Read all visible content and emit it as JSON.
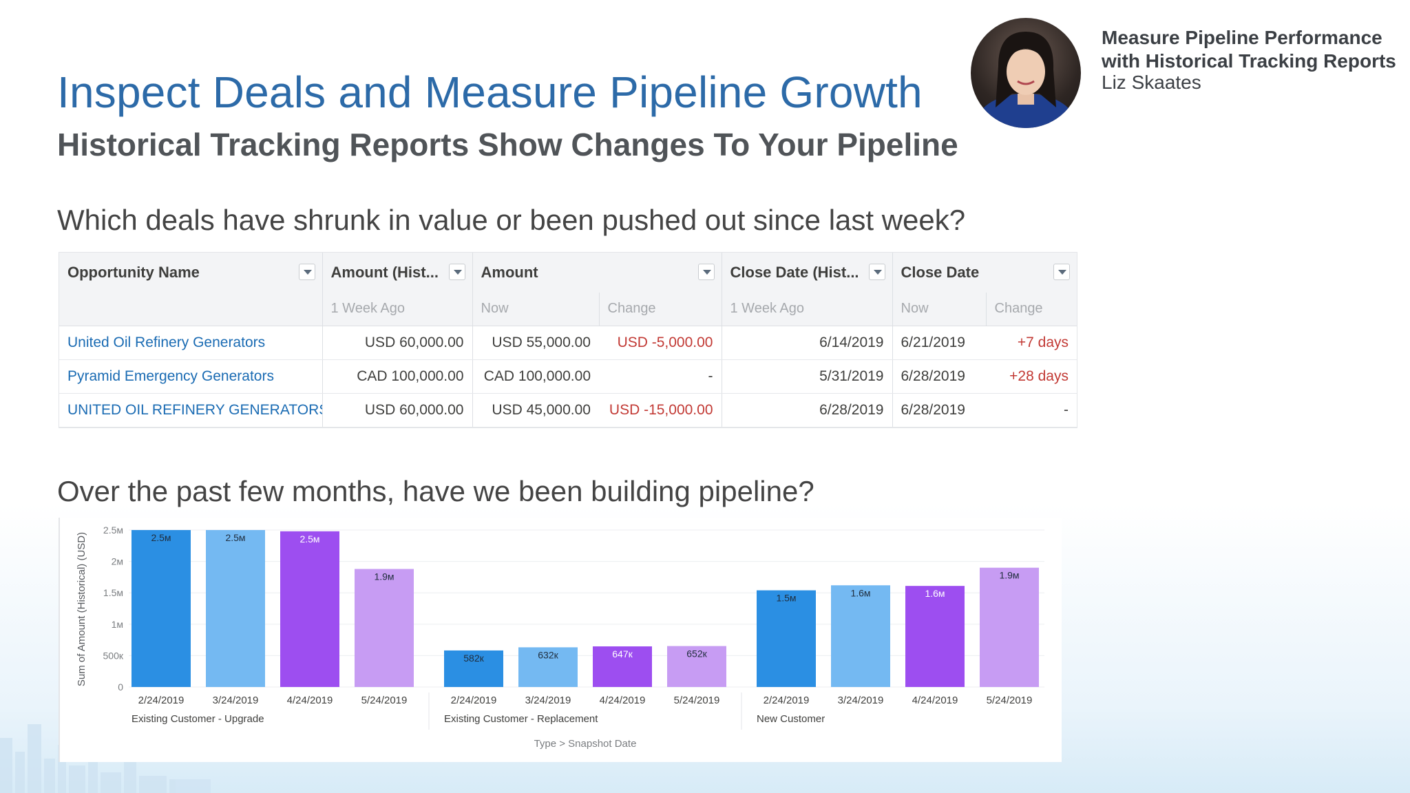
{
  "header": {
    "title": "Inspect Deals and Measure Pipeline Growth",
    "subtitle": "Historical Tracking Reports Show Changes To Your Pipeline"
  },
  "sidebar": {
    "session_title": "Measure Pipeline Performance with Historical Tracking Reports",
    "speaker": "Liz Skaates"
  },
  "questions": {
    "deals": "Which deals have shrunk in value or been pushed out since last week?",
    "pipeline": "Over the past few months, have we been building pipeline?"
  },
  "report": {
    "columns": [
      "Opportunity Name",
      "Amount (Hist...",
      "Amount",
      "Close Date (Hist...",
      "Close Date"
    ],
    "subheaders": [
      "",
      "1 Week Ago",
      "Now",
      "Change",
      "1 Week Ago",
      "Now",
      "Change"
    ],
    "rows": [
      [
        "United Oil Refinery Generators",
        "USD 60,000.00",
        "USD 55,000.00",
        "USD -5,000.00",
        "6/14/2019",
        "6/21/2019",
        "+7 days"
      ],
      [
        "Pyramid Emergency Generators",
        "CAD 100,000.00",
        "CAD 100,000.00",
        "-",
        "5/31/2019",
        "6/28/2019",
        "+28 days"
      ],
      [
        "UNITED OIL REFINERY GENERATORS",
        "USD 60,000.00",
        "USD 45,000.00",
        "USD -15,000.00",
        "6/28/2019",
        "6/28/2019",
        "-"
      ]
    ]
  },
  "colors": {
    "title": "#2c6aa8",
    "link": "#1a6bb3",
    "negative": "#c23934"
  },
  "chart_data": {
    "type": "bar",
    "ylabel": "Sum of Amount (Historical) (USD)",
    "xlabel": "Type  >  Snapshot Date",
    "yticks": [
      "2.5м",
      "2м",
      "1.5м",
      "1м",
      "500к",
      "0"
    ],
    "ylim": [
      0,
      2500000
    ],
    "grid": true,
    "groups": [
      {
        "name": "Existing Customer - Upgrade",
        "bars": [
          {
            "date": "2/24/2019",
            "value": 2500000,
            "label": "2.5м",
            "color": "#2b8fe3"
          },
          {
            "date": "3/24/2019",
            "value": 2500000,
            "label": "2.5м",
            "color": "#74b9f2"
          },
          {
            "date": "4/24/2019",
            "value": 2480000,
            "label": "2.5м",
            "color": "#9d4ef0"
          },
          {
            "date": "5/24/2019",
            "value": 1880000,
            "label": "1.9м",
            "color": "#c79cf3"
          }
        ]
      },
      {
        "name": "Existing Customer - Replacement",
        "bars": [
          {
            "date": "2/24/2019",
            "value": 582000,
            "label": "582к",
            "color": "#2b8fe3"
          },
          {
            "date": "3/24/2019",
            "value": 632000,
            "label": "632к",
            "color": "#74b9f2"
          },
          {
            "date": "4/24/2019",
            "value": 647000,
            "label": "647к",
            "color": "#9d4ef0"
          },
          {
            "date": "5/24/2019",
            "value": 652000,
            "label": "652к",
            "color": "#c79cf3"
          }
        ]
      },
      {
        "name": "New Customer",
        "bars": [
          {
            "date": "2/24/2019",
            "value": 1540000,
            "label": "1.5м",
            "color": "#2b8fe3"
          },
          {
            "date": "3/24/2019",
            "value": 1620000,
            "label": "1.6м",
            "color": "#74b9f2"
          },
          {
            "date": "4/24/2019",
            "value": 1610000,
            "label": "1.6м",
            "color": "#9d4ef0"
          },
          {
            "date": "5/24/2019",
            "value": 1900000,
            "label": "1.9м",
            "color": "#c79cf3"
          }
        ]
      }
    ]
  }
}
